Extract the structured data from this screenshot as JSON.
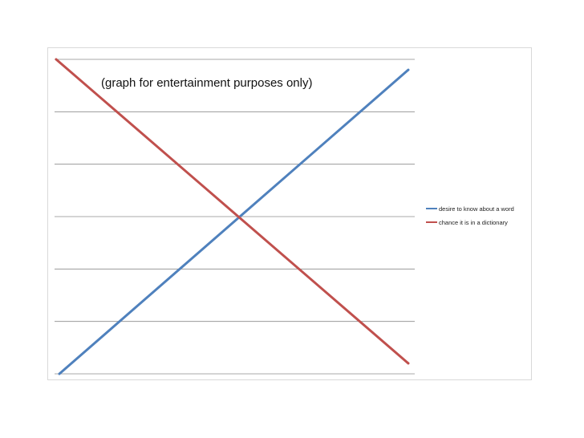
{
  "chart_data": {
    "type": "line",
    "annotation": "(graph for entertainment purposes only)",
    "xlabel": "",
    "ylabel": "",
    "x": [
      0,
      1
    ],
    "ylim": [
      0,
      6
    ],
    "grid": true,
    "legend_position": "right",
    "series": [
      {
        "name": "desire to know about a word",
        "color": "#4f81bd",
        "values": [
          0,
          5.8
        ]
      },
      {
        "name": "chance it is in a dictionary",
        "color": "#c0504d",
        "values": [
          6,
          0.2
        ]
      }
    ]
  }
}
